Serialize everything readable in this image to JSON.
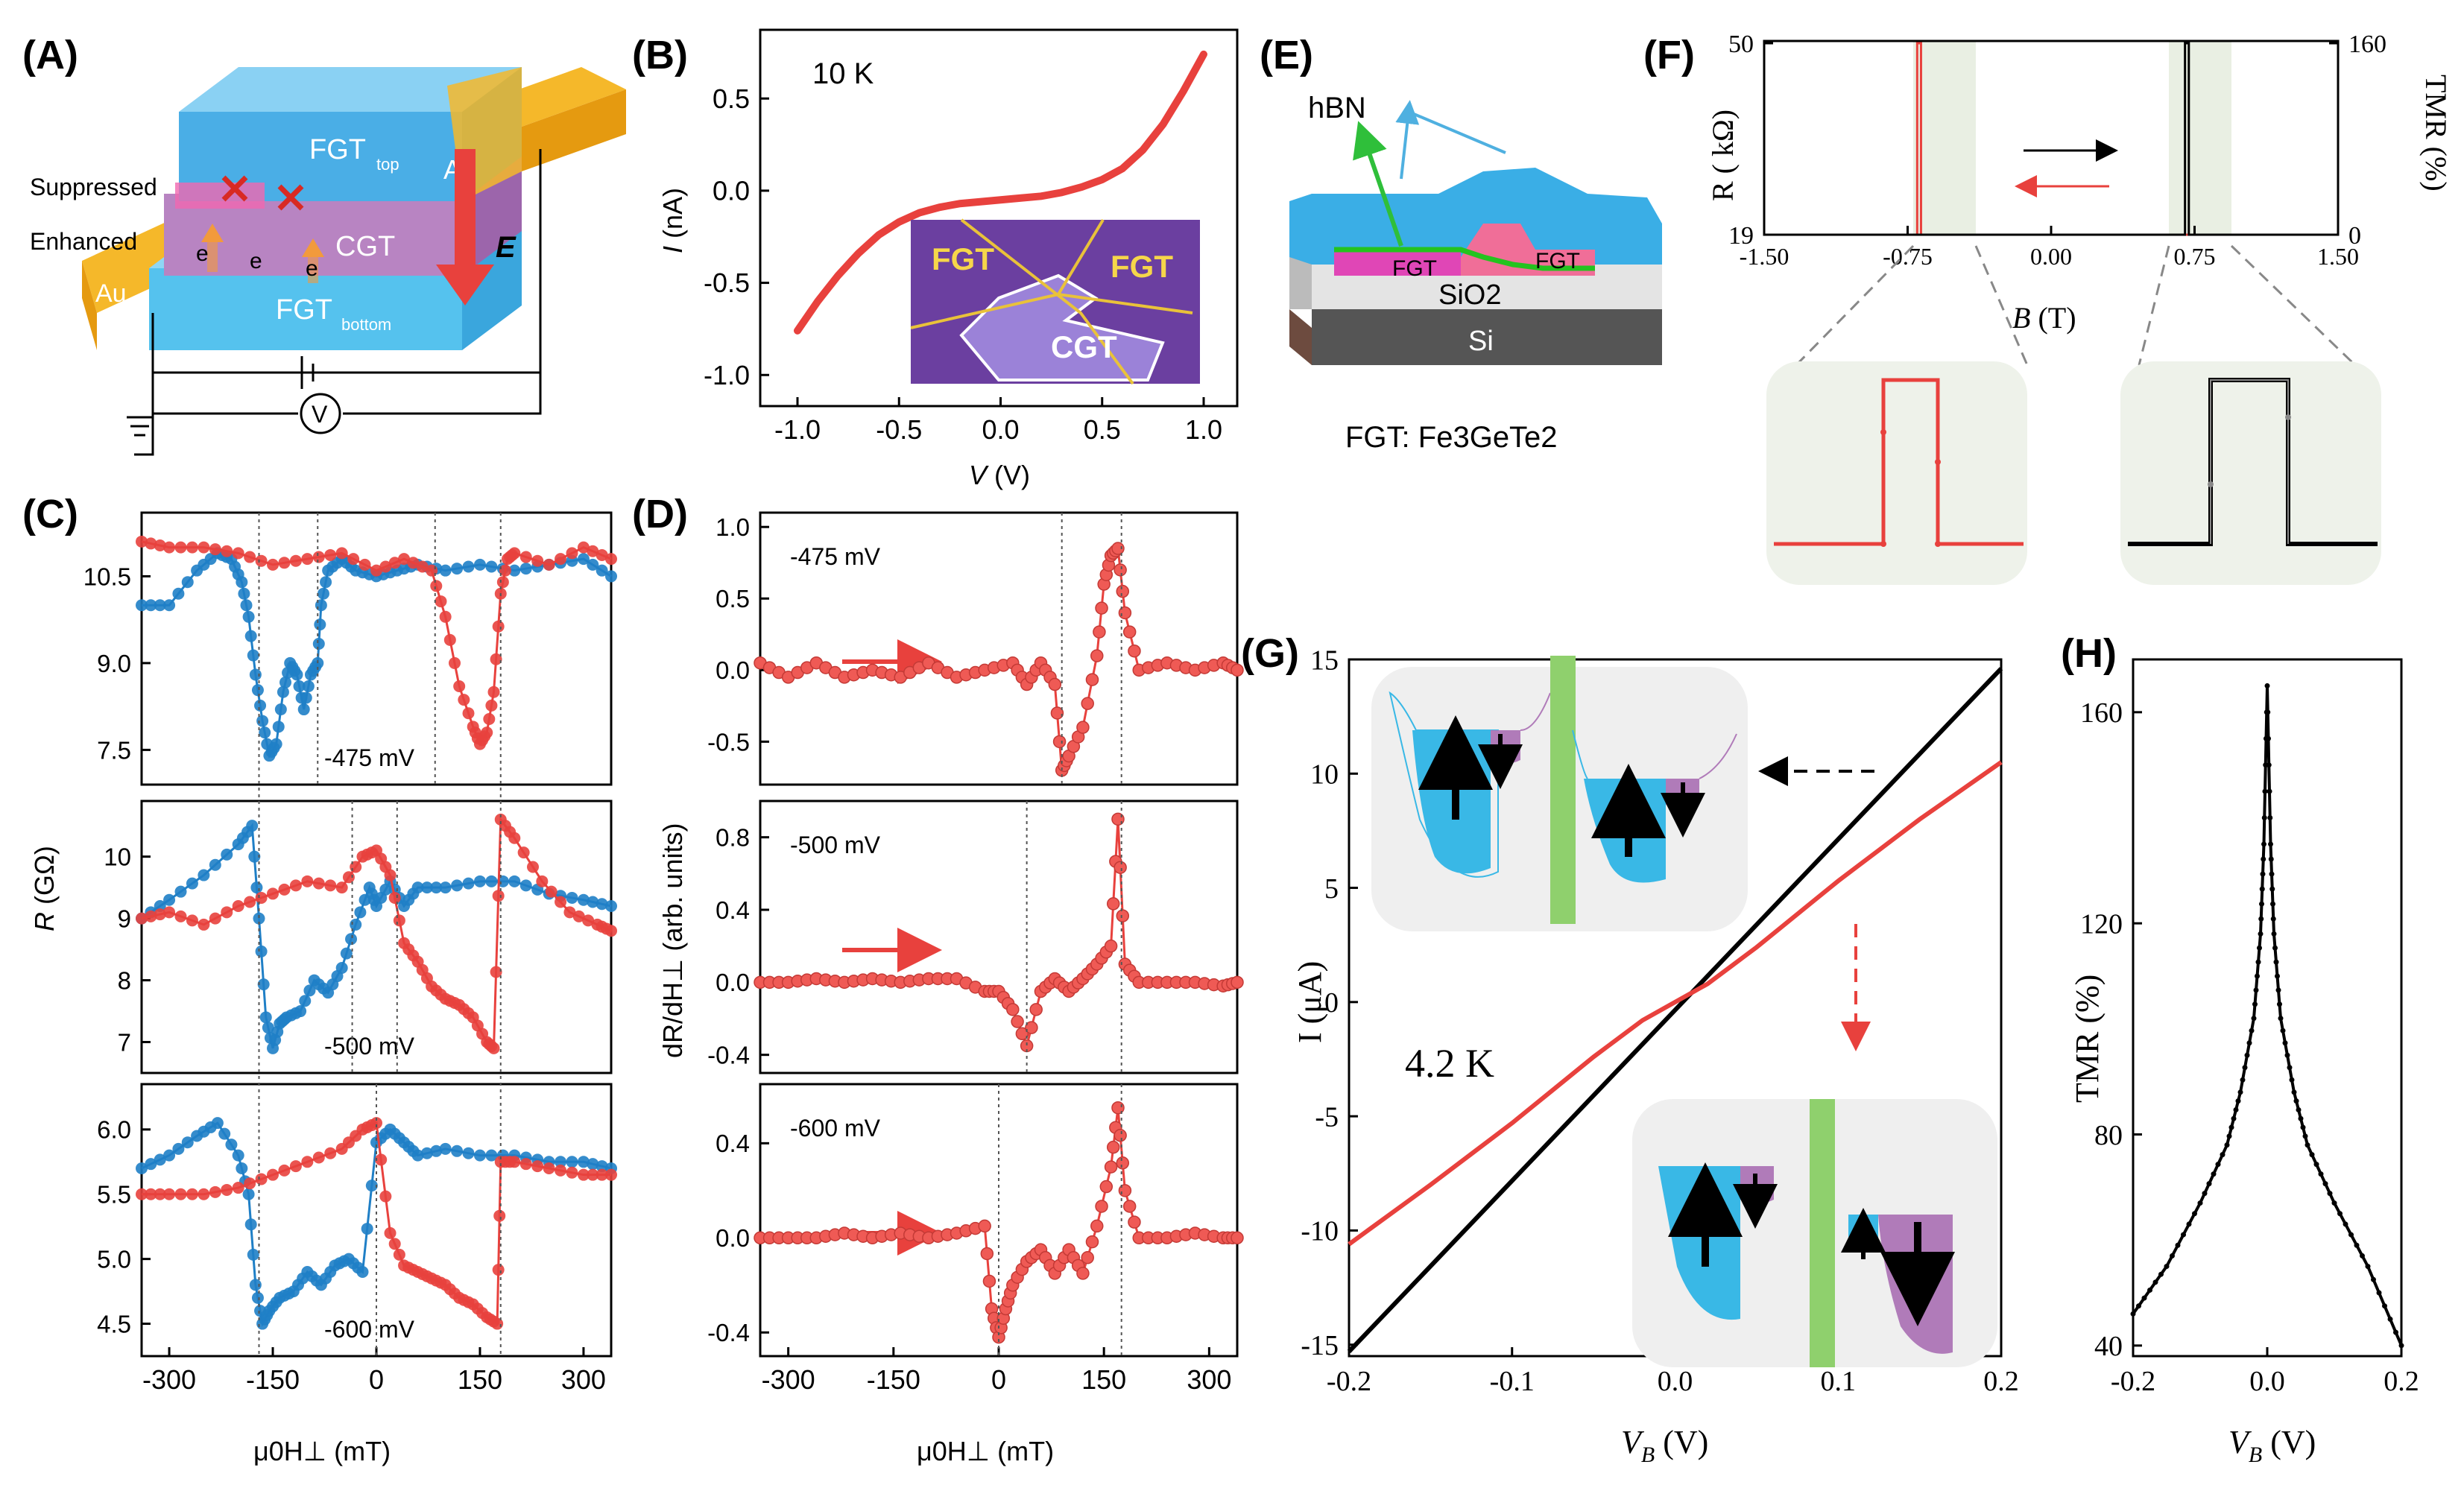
{
  "panels": {
    "A": {
      "letter": "(A)",
      "labels": {
        "suppressed": "Suppressed",
        "enhanced": "Enhanced",
        "fgt_top": "FGT",
        "fgt_top_sub": "top",
        "cgt": "CGT",
        "fgt_bottom": "FGT",
        "fgt_bottom_sub": "bottom",
        "au_right": "Au",
        "au_left": "Au",
        "e_field": "E",
        "electron": "e",
        "voltmeter": "V"
      }
    },
    "B": {
      "letter": "(B)",
      "temp": "10 K",
      "xlabel_italic": "V",
      "xlabel_unit": " (V)",
      "ylabel_italic": "I",
      "ylabel_unit": " (nA)",
      "inset": {
        "fgt_left": "FGT",
        "fgt_right": "FGT",
        "cgt": "CGT"
      }
    },
    "C": {
      "letter": "(C)",
      "ylabel_italic": "R",
      "ylabel_unit": " (GΩ)",
      "xlabel": "μ0H⊥ (mT)",
      "sub_labels": [
        "-475 mV",
        "-500 mV",
        "-600 mV"
      ]
    },
    "D": {
      "letter": "(D)",
      "ylabel": "dR/dH⊥ (arb. units)",
      "xlabel": "μ0H⊥ (mT)",
      "sub_labels": [
        "-475 mV",
        "-500 mV",
        "-600 mV"
      ]
    },
    "E": {
      "letter": "(E)",
      "hbn": "hBN",
      "fgt1": "FGT",
      "fgt2": "FGT",
      "sio2": "SiO2",
      "si": "Si",
      "caption": "FGT: Fe3GeTe2"
    },
    "F": {
      "letter": "(F)",
      "ylabel_left": "R ( kΩ)",
      "ylabel_right": "TMR (%)",
      "xlabel_italic": "B",
      "xlabel_unit": " (T)"
    },
    "G": {
      "letter": "(G)",
      "temp": "4.2 K",
      "ylabel": "I (μA)",
      "xlabel_italic": "V",
      "xlabel_sub": "B",
      "xlabel_unit": " (V)"
    },
    "H": {
      "letter": "(H)",
      "ylabel": "TMR (%)",
      "xlabel_italic": "V",
      "xlabel_sub": "B",
      "xlabel_unit": " (V)"
    }
  },
  "colors": {
    "red": "#e8413d",
    "red_marker": "#ef5a55",
    "blue": "#1f7fc6",
    "black": "#000000",
    "green": "#8fd06d",
    "cyan": "#39b8e6",
    "purple": "#b07bb9"
  },
  "chart_data": [
    {
      "panel": "B",
      "type": "line",
      "xlim": [
        -1.0,
        1.0
      ],
      "ylim": [
        -1.1,
        0.8
      ],
      "xticks": [
        "-1.0",
        "-0.5",
        "0.0",
        "0.5",
        "1.0"
      ],
      "yticks": [
        "0.5",
        "0.0",
        "-0.5",
        "-1.0"
      ],
      "series": [
        {
          "x": [
            -1.0,
            -0.9,
            -0.8,
            -0.7,
            -0.6,
            -0.5,
            -0.4,
            -0.3,
            -0.2,
            -0.1,
            0.0,
            0.1,
            0.2,
            0.3,
            0.4,
            0.5,
            0.6,
            0.7,
            0.8,
            0.9,
            1.0
          ],
          "y": [
            -0.76,
            -0.6,
            -0.46,
            -0.34,
            -0.24,
            -0.17,
            -0.12,
            -0.09,
            -0.07,
            -0.06,
            -0.05,
            -0.04,
            -0.03,
            -0.01,
            0.02,
            0.06,
            0.12,
            0.22,
            0.36,
            0.54,
            0.74
          ]
        }
      ]
    },
    {
      "panel": "C",
      "type": "scatter",
      "xlim": [
        -340,
        340
      ],
      "xticks": [
        "-300",
        "-150",
        "0",
        "150",
        "300"
      ],
      "subplots": [
        {
          "label": "-475 mV",
          "yticks": [
            "10.5",
            "9.0",
            "7.5"
          ],
          "ylim": [
            6.9,
            11.6
          ],
          "series": [
            {
              "color": "blue",
              "x": [
                -340,
                -300,
                -260,
                -230,
                -210,
                -195,
                -185,
                -175,
                -165,
                -155,
                -145,
                -135,
                -125,
                -115,
                -105,
                -95,
                -85,
                -80,
                -70,
                -50,
                -30,
                0,
                30,
                60,
                100,
                150,
                200,
                250,
                300,
                340
              ],
              "y": [
                10.0,
                10.0,
                10.6,
                10.9,
                10.8,
                10.4,
                9.8,
                8.8,
                8.0,
                7.4,
                7.6,
                8.5,
                9.0,
                8.8,
                8.2,
                8.8,
                9.0,
                10.0,
                10.6,
                10.8,
                10.6,
                10.5,
                10.6,
                10.7,
                10.6,
                10.7,
                10.6,
                10.7,
                10.8,
                10.5
              ]
            },
            {
              "color": "red",
              "x": [
                -340,
                -300,
                -250,
                -200,
                -150,
                -100,
                -50,
                0,
                40,
                80,
                100,
                120,
                140,
                150,
                160,
                170,
                180,
                190,
                200,
                250,
                300,
                340
              ],
              "y": [
                11.1,
                11.0,
                11.0,
                10.9,
                10.7,
                10.8,
                10.9,
                10.6,
                10.8,
                10.6,
                9.8,
                8.6,
                7.9,
                7.6,
                7.8,
                8.5,
                10.2,
                10.8,
                10.9,
                10.7,
                11.0,
                10.8
              ]
            }
          ]
        },
        {
          "label": "-500 mV",
          "yticks": [
            "10",
            "9",
            "8",
            "7"
          ],
          "ylim": [
            6.5,
            10.9
          ],
          "series": [
            {
              "color": "blue",
              "x": [
                -340,
                -300,
                -250,
                -200,
                -180,
                -170,
                -160,
                -150,
                -140,
                -130,
                -110,
                -90,
                -70,
                -50,
                -30,
                -10,
                0,
                20,
                40,
                60,
                100,
                150,
                200,
                250,
                300,
                340
              ],
              "y": [
                9.0,
                9.3,
                9.7,
                10.2,
                10.5,
                9.0,
                7.4,
                6.9,
                7.3,
                7.4,
                7.5,
                8.0,
                7.8,
                8.2,
                8.9,
                9.5,
                9.2,
                9.6,
                9.2,
                9.5,
                9.5,
                9.6,
                9.6,
                9.4,
                9.3,
                9.2
              ]
            },
            {
              "color": "red",
              "x": [
                -340,
                -300,
                -250,
                -200,
                -150,
                -100,
                -50,
                -20,
                0,
                20,
                40,
                60,
                80,
                100,
                120,
                140,
                160,
                170,
                180,
                200,
                240,
                280,
                320,
                340
              ],
              "y": [
                9.0,
                9.1,
                8.9,
                9.2,
                9.4,
                9.6,
                9.5,
                10.0,
                10.1,
                9.7,
                8.6,
                8.3,
                7.9,
                7.7,
                7.6,
                7.4,
                7.0,
                6.9,
                10.6,
                10.3,
                9.6,
                9.1,
                8.9,
                8.8
              ]
            }
          ]
        },
        {
          "label": "-600 mV",
          "yticks": [
            "6.0",
            "5.5",
            "5.0",
            "4.5"
          ],
          "ylim": [
            4.25,
            6.35
          ],
          "series": [
            {
              "color": "blue",
              "x": [
                -340,
                -300,
                -260,
                -230,
                -200,
                -185,
                -175,
                -165,
                -155,
                -140,
                -120,
                -100,
                -80,
                -60,
                -40,
                -20,
                0,
                20,
                40,
                60,
                100,
                150,
                200,
                250,
                300,
                340
              ],
              "y": [
                5.7,
                5.8,
                5.95,
                6.05,
                5.8,
                5.5,
                4.8,
                4.5,
                4.6,
                4.7,
                4.75,
                4.9,
                4.8,
                4.95,
                5.0,
                4.9,
                5.9,
                6.0,
                5.9,
                5.8,
                5.85,
                5.8,
                5.8,
                5.75,
                5.75,
                5.7
              ]
            },
            {
              "color": "red",
              "x": [
                -340,
                -300,
                -250,
                -200,
                -150,
                -100,
                -50,
                -20,
                0,
                20,
                40,
                60,
                80,
                100,
                120,
                140,
                160,
                175,
                180,
                200,
                250,
                300,
                340
              ],
              "y": [
                5.5,
                5.5,
                5.5,
                5.55,
                5.65,
                5.75,
                5.85,
                6.0,
                6.05,
                5.2,
                4.95,
                4.9,
                4.85,
                4.8,
                4.7,
                4.65,
                4.55,
                4.5,
                5.75,
                5.75,
                5.7,
                5.65,
                5.65
              ]
            }
          ]
        }
      ]
    },
    {
      "panel": "D",
      "type": "scatter",
      "xlim": [
        -340,
        340
      ],
      "xticks": [
        "-300",
        "-150",
        "0",
        "150",
        "300"
      ],
      "subplots": [
        {
          "label": "-475 mV",
          "yticks": [
            "1.0",
            "0.5",
            "0.0",
            "-0.5"
          ],
          "ylim": [
            -0.8,
            1.1
          ],
          "x": [
            -340,
            -300,
            -260,
            -220,
            -180,
            -140,
            -100,
            -60,
            -20,
            20,
            40,
            60,
            80,
            90,
            100,
            120,
            140,
            150,
            160,
            170,
            180,
            200,
            240,
            280,
            320,
            340
          ],
          "y": [
            0.05,
            -0.05,
            0.05,
            -0.05,
            0.0,
            -0.05,
            0.05,
            -0.05,
            0.0,
            0.05,
            -0.1,
            0.05,
            -0.1,
            -0.7,
            -0.6,
            -0.4,
            0.1,
            0.6,
            0.8,
            0.85,
            0.4,
            0.0,
            0.05,
            0.0,
            0.05,
            0.0
          ]
        },
        {
          "label": "-500 mV",
          "yticks": [
            "0.8",
            "0.4",
            "0.0",
            "-0.4"
          ],
          "ylim": [
            -0.5,
            1.0
          ],
          "x": [
            -340,
            -300,
            -260,
            -220,
            -180,
            -140,
            -100,
            -60,
            -20,
            0,
            20,
            40,
            60,
            80,
            100,
            120,
            140,
            160,
            170,
            180,
            200,
            240,
            280,
            320,
            340
          ],
          "y": [
            0.0,
            0.0,
            0.02,
            0.0,
            0.02,
            0.0,
            0.02,
            0.02,
            -0.05,
            -0.05,
            -0.15,
            -0.35,
            -0.05,
            0.02,
            -0.05,
            0.02,
            0.1,
            0.2,
            0.9,
            0.1,
            0.0,
            0.0,
            0.0,
            -0.02,
            0.0
          ]
        },
        {
          "label": "-600 mV",
          "yticks": [
            "0.4",
            "0.0",
            "-0.4"
          ],
          "ylim": [
            -0.5,
            0.65
          ],
          "x": [
            -340,
            -300,
            -260,
            -220,
            -180,
            -140,
            -100,
            -60,
            -20,
            -10,
            0,
            10,
            20,
            40,
            60,
            80,
            100,
            120,
            140,
            160,
            170,
            180,
            200,
            240,
            280,
            320,
            340
          ],
          "y": [
            0.0,
            0.0,
            0.0,
            0.02,
            0.0,
            0.02,
            0.0,
            0.02,
            0.05,
            -0.3,
            -0.42,
            -0.3,
            -0.2,
            -0.1,
            -0.05,
            -0.15,
            -0.05,
            -0.15,
            0.05,
            0.3,
            0.55,
            0.2,
            0.0,
            0.0,
            0.02,
            0.0,
            0.0
          ]
        }
      ]
    },
    {
      "panel": "F",
      "type": "line",
      "xlim": [
        -1.5,
        1.5
      ],
      "ylim": [
        19,
        50
      ],
      "y2lim": [
        0,
        160
      ],
      "xticks": [
        "-1.50",
        "-0.75",
        "0.00",
        "0.75",
        "1.50"
      ],
      "yticks": [
        "50",
        "19"
      ],
      "y2ticks": [
        "160",
        "0"
      ],
      "series": [
        {
          "color": "black",
          "x": [
            -1.5,
            0.7,
            0.7,
            0.72,
            0.72,
            1.5
          ],
          "y": [
            19,
            19,
            50,
            50,
            19,
            19
          ]
        },
        {
          "color": "red",
          "x": [
            1.5,
            -0.7,
            -0.7,
            -0.68,
            -0.68,
            -1.5
          ],
          "y": [
            19,
            19,
            50,
            50,
            19,
            19
          ]
        }
      ]
    },
    {
      "panel": "G",
      "type": "line",
      "xlim": [
        -0.2,
        0.2
      ],
      "ylim": [
        -15.5,
        15
      ],
      "xticks": [
        "-0.2",
        "-0.1",
        "0.0",
        "0.1",
        "0.2"
      ],
      "yticks": [
        "15",
        "10",
        "5",
        "0",
        "-5",
        "-10",
        "-15"
      ],
      "series": [
        {
          "color": "black",
          "x": [
            -0.2,
            0.2
          ],
          "y": [
            -15.3,
            14.6
          ]
        },
        {
          "color": "red",
          "x": [
            -0.2,
            -0.15,
            -0.1,
            -0.05,
            -0.02,
            0.0,
            0.02,
            0.05,
            0.1,
            0.15,
            0.2
          ],
          "y": [
            -10.6,
            -8.0,
            -5.3,
            -2.4,
            -0.8,
            0.0,
            0.8,
            2.4,
            5.3,
            8.0,
            10.5
          ]
        }
      ]
    },
    {
      "panel": "H",
      "type": "line",
      "xlim": [
        -0.2,
        0.2
      ],
      "ylim": [
        38,
        170
      ],
      "xticks": [
        "-0.2",
        "0.0",
        "0.2"
      ],
      "yticks": [
        "160",
        "120",
        "80",
        "40"
      ],
      "series": [
        {
          "color": "black",
          "x": [
            -0.2,
            -0.15,
            -0.1,
            -0.06,
            -0.04,
            -0.02,
            -0.01,
            -0.005,
            0.0,
            0.005,
            0.01,
            0.02,
            0.04,
            0.06,
            0.1,
            0.15,
            0.2
          ],
          "y": [
            46,
            55,
            67,
            78,
            88,
            102,
            118,
            135,
            165,
            135,
            118,
            102,
            88,
            78,
            67,
            55,
            40
          ]
        }
      ]
    }
  ]
}
